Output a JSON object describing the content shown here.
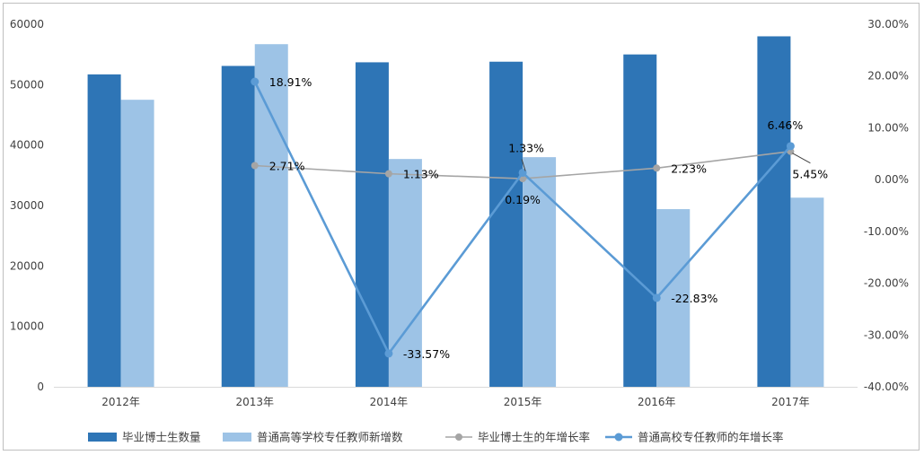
{
  "chart_data": {
    "type": "bar",
    "categories": [
      "2012年",
      "2013年",
      "2014年",
      "2015年",
      "2016年",
      "2017年"
    ],
    "series": [
      {
        "name": "毕业博士生数量",
        "kind": "bar",
        "axis": "left",
        "color": "#2e75b6",
        "values": [
          51700,
          53100,
          53700,
          53800,
          55000,
          58000
        ]
      },
      {
        "name": "普通高等学校专任教师新增数",
        "kind": "bar",
        "axis": "left",
        "color": "#9dc3e6",
        "values": [
          47500,
          56700,
          37700,
          38000,
          29400,
          31300
        ]
      },
      {
        "name": "毕业博士生的年增长率",
        "kind": "line",
        "axis": "right",
        "color": "#a5a5a5",
        "values": [
          null,
          2.71,
          1.13,
          0.19,
          2.23,
          5.45
        ],
        "labels": [
          "",
          "2.71%",
          "1.13%",
          "0.19%",
          "2.23%",
          "5.45%"
        ]
      },
      {
        "name": "普通高校专任教师的年增长率",
        "kind": "line",
        "axis": "right",
        "color": "#5b9bd5",
        "values": [
          null,
          18.91,
          -33.57,
          1.33,
          -22.83,
          6.46
        ],
        "labels": [
          "",
          "18.91%",
          "-33.57%",
          "1.33%",
          "-22.83%",
          "6.46%"
        ]
      }
    ],
    "ylim_left": [
      0,
      60000
    ],
    "yticks_left": [
      "0",
      "10000",
      "20000",
      "30000",
      "40000",
      "50000",
      "60000"
    ],
    "ylim_right": [
      -40,
      30
    ],
    "yticks_right": [
      "-40.00%",
      "-30.00%",
      "-20.00%",
      "-10.00%",
      "0.00%",
      "10.00%",
      "20.00%",
      "30.00%"
    ],
    "legend_position": "bottom",
    "grid": false
  }
}
